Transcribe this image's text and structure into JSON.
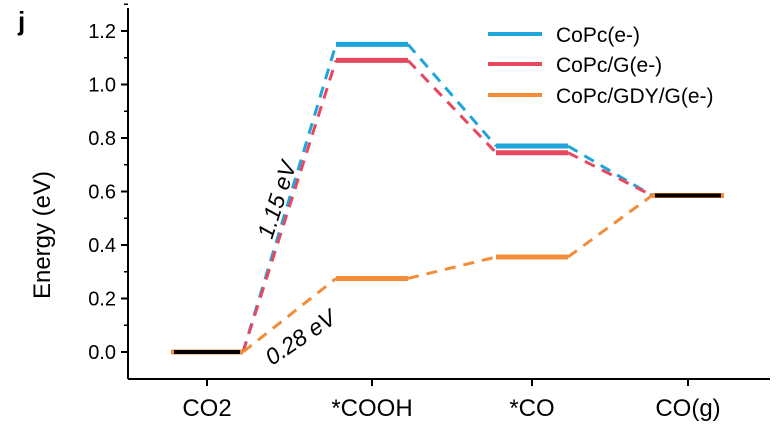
{
  "panel_label": "j",
  "chart_data": {
    "type": "line",
    "title": "",
    "xlabel": "",
    "ylabel": "Energy (eV)",
    "categories": [
      "CO2",
      "*COOH",
      "*CO",
      "CO(g)"
    ],
    "ylim": [
      -0.1,
      1.3
    ],
    "yticks": [
      0.0,
      0.2,
      0.4,
      0.6,
      0.8,
      1.0,
      1.2
    ],
    "ytick_labels": [
      "0.0",
      "0.2",
      "0.4",
      "0.6",
      "0.8",
      "1.0",
      "1.2"
    ],
    "grid": false,
    "legend_position": "top-right",
    "series": [
      {
        "name": "CoPc(e-)",
        "color": "#1ea6dc",
        "values": [
          0.0,
          1.15,
          0.77,
          0.585
        ]
      },
      {
        "name": "CoPc/G(e-)",
        "color": "#e8485f",
        "values": [
          0.0,
          1.09,
          0.745,
          0.585
        ]
      },
      {
        "name": "CoPc/GDY/G(e-)",
        "color": "#f28c38",
        "values": [
          0.0,
          0.275,
          0.355,
          0.585
        ]
      }
    ],
    "overlay_levels": {
      "color": "#000000",
      "values": {
        "CO2": 0.0,
        "CO(g)": 0.585
      }
    },
    "annotations": [
      {
        "text": "1.15 eV",
        "color": "#000000"
      },
      {
        "text": "0.28 eV",
        "color": "#000000"
      }
    ]
  }
}
